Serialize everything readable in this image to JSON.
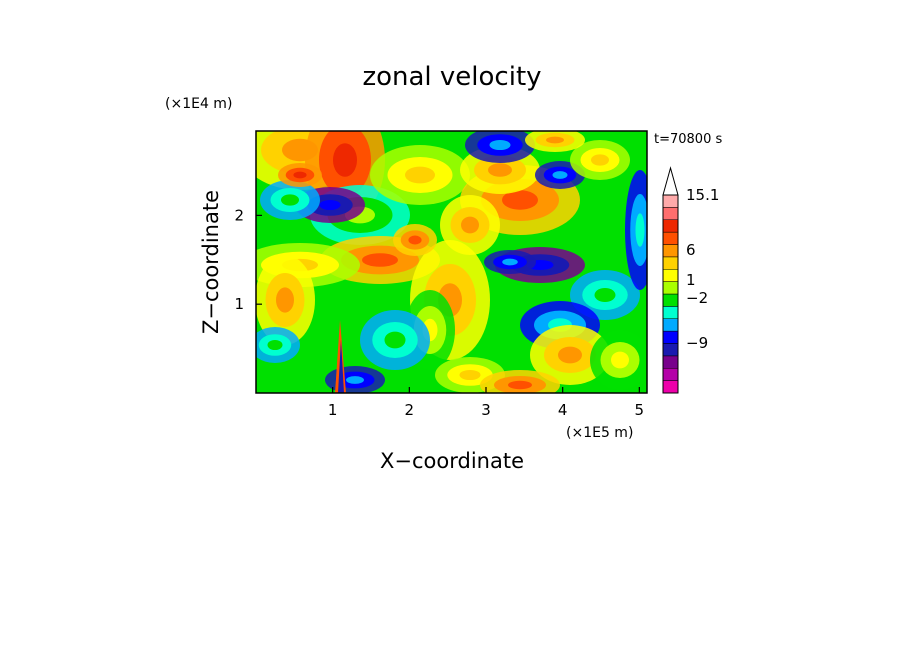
{
  "chart_data": {
    "type": "heatmap",
    "title": "zonal velocity",
    "xlabel": "X−coordinate",
    "ylabel": "Z−coordinate",
    "x_unit": "(×1E5 m)",
    "y_unit": "(×1E4 m)",
    "time_label": "t=70800 s",
    "xlim": [
      0,
      5.1
    ],
    "ylim": [
      0,
      2.95
    ],
    "x_ticks": [
      1,
      2,
      3,
      4,
      5
    ],
    "y_ticks": [
      1,
      2
    ],
    "x_tick_labels": [
      "1",
      "2",
      "3",
      "4",
      "5"
    ],
    "y_tick_labels": [
      "1",
      "2"
    ],
    "colorbar": {
      "colors": [
        "#ee00aa",
        "#b400a8",
        "#78008c",
        "#1a1ab0",
        "#0000ff",
        "#00aaff",
        "#00ffd0",
        "#00e000",
        "#aaff00",
        "#ffff00",
        "#ffd200",
        "#ff9600",
        "#ff5000",
        "#ee2800",
        "#ff6e6e",
        "#ffaaaa"
      ],
      "tick_values": [
        15.1,
        6,
        1,
        -2,
        -9
      ],
      "tick_labels": [
        "15.1",
        "6",
        "1",
        "−2",
        "−9"
      ]
    },
    "grid": false
  }
}
